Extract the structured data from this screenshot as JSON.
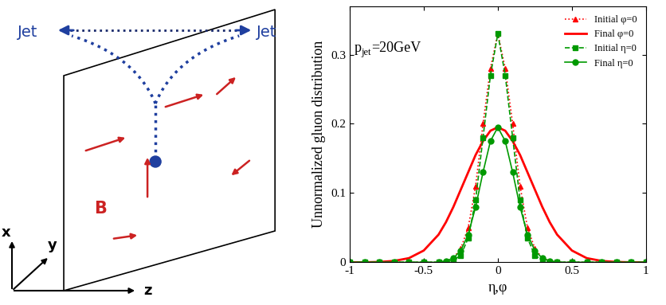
{
  "diagram": {
    "jets": [
      "Jet",
      "Jet"
    ],
    "field": "B",
    "axes": [
      "x",
      "y",
      "z"
    ]
  },
  "chart_data": {
    "type": "line",
    "ylabel": "Unnormalized gluon distribution",
    "xlabel": "η,φ",
    "annotation": {
      "base": "p",
      "subscript": "jet",
      "text": "=20GeV"
    },
    "x": [
      -1,
      -0.9,
      -0.8,
      -0.7,
      -0.6,
      -0.5,
      -0.4,
      -0.35,
      -0.3,
      -0.25,
      -0.2,
      -0.15,
      -0.1,
      -0.05,
      0,
      0.05,
      0.1,
      0.15,
      0.2,
      0.25,
      0.3,
      0.35,
      0.4,
      0.5,
      0.6,
      0.7,
      0.8,
      0.9,
      1
    ],
    "series": [
      {
        "name": "Initial φ=0",
        "color": "#ff0000",
        "marker": "triangle",
        "line_style": "dotted",
        "values": [
          0,
          0,
          0,
          0,
          0,
          0,
          0,
          0.002,
          0.006,
          0.02,
          0.05,
          0.11,
          0.2,
          0.28,
          0.33,
          0.28,
          0.2,
          0.11,
          0.05,
          0.02,
          0.006,
          0.002,
          0,
          0,
          0,
          0,
          0,
          0,
          0
        ]
      },
      {
        "name": "Final φ=0",
        "color": "#ff0000",
        "marker": "none",
        "line_style": "solid",
        "values": [
          0,
          0,
          0.0005,
          0.002,
          0.006,
          0.017,
          0.04,
          0.058,
          0.08,
          0.105,
          0.13,
          0.155,
          0.175,
          0.19,
          0.195,
          0.19,
          0.175,
          0.155,
          0.13,
          0.105,
          0.08,
          0.058,
          0.04,
          0.017,
          0.006,
          0.002,
          0.0005,
          0,
          0
        ]
      },
      {
        "name": "Initial η=0",
        "color": "#009900",
        "marker": "square",
        "line_style": "dashed",
        "values": [
          0,
          0,
          0,
          0,
          0,
          0,
          0,
          0.001,
          0.003,
          0.01,
          0.035,
          0.09,
          0.18,
          0.27,
          0.33,
          0.27,
          0.18,
          0.09,
          0.035,
          0.01,
          0.003,
          0.001,
          0,
          0,
          0,
          0,
          0,
          0,
          0
        ]
      },
      {
        "name": "Final η=0",
        "color": "#009900",
        "marker": "circle",
        "line_style": "solid",
        "values": [
          0,
          0,
          0,
          0,
          0,
          0,
          0,
          0.002,
          0.006,
          0.017,
          0.04,
          0.08,
          0.13,
          0.175,
          0.195,
          0.175,
          0.13,
          0.08,
          0.04,
          0.017,
          0.006,
          0.002,
          0,
          0,
          0,
          0,
          0,
          0,
          0
        ]
      }
    ],
    "xlim": [
      -1,
      1
    ],
    "xticks": [
      -1,
      -0.5,
      0,
      0.5,
      1
    ],
    "ylim": [
      0,
      0.37
    ],
    "yticks": [
      0,
      0.1,
      0.2,
      0.3
    ],
    "legend": "upper right"
  }
}
